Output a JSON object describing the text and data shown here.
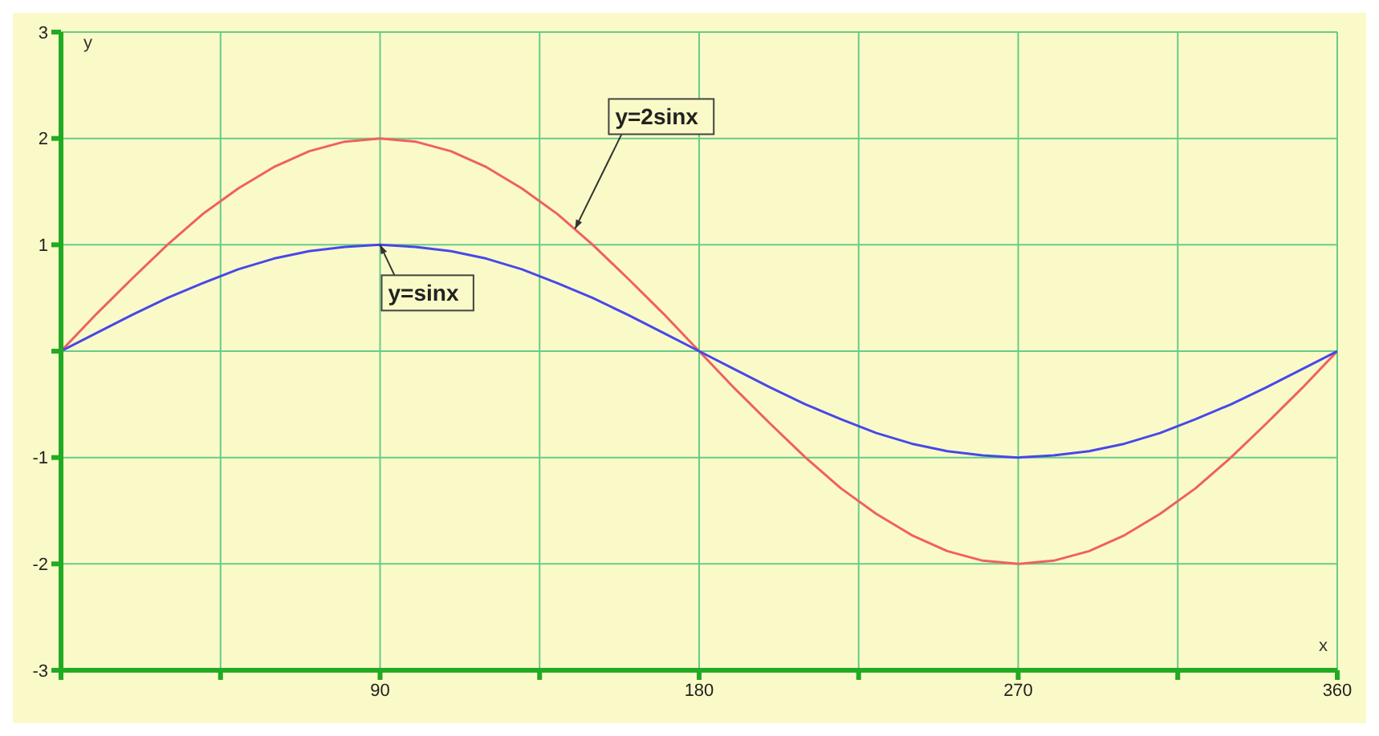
{
  "chart_data": {
    "type": "line",
    "xlabel": "x",
    "ylabel": "y",
    "x": [
      0,
      10,
      20,
      30,
      40,
      50,
      60,
      70,
      80,
      90,
      100,
      110,
      120,
      130,
      140,
      150,
      160,
      170,
      180,
      190,
      200,
      210,
      220,
      230,
      240,
      250,
      260,
      270,
      280,
      290,
      300,
      310,
      320,
      330,
      340,
      350,
      360
    ],
    "series": [
      {
        "color": "#f06060",
        "values": [
          0,
          0.35,
          0.68,
          1,
          1.29,
          1.53,
          1.73,
          1.88,
          1.97,
          2,
          1.97,
          1.88,
          1.73,
          1.53,
          1.29,
          1,
          0.68,
          0.35,
          0,
          -0.35,
          -0.68,
          -1,
          -1.29,
          -1.53,
          -1.73,
          -1.88,
          -1.97,
          -2,
          -1.97,
          -1.88,
          -1.73,
          -1.53,
          -1.29,
          -1,
          -0.68,
          -0.35,
          0
        ]
      },
      {
        "color": "#4848e8",
        "values": [
          0,
          0.17,
          0.34,
          0.5,
          0.64,
          0.77,
          0.87,
          0.94,
          0.98,
          1,
          0.98,
          0.94,
          0.87,
          0.77,
          0.64,
          0.5,
          0.34,
          0.17,
          0,
          -0.17,
          -0.34,
          -0.5,
          -0.64,
          -0.77,
          -0.87,
          -0.94,
          -0.98,
          -1,
          -0.98,
          -0.94,
          -0.87,
          -0.77,
          -0.64,
          -0.5,
          -0.34,
          -0.17,
          0
        ]
      }
    ],
    "xlim": [
      0,
      360
    ],
    "xticks": [
      {
        "value": 0,
        "label": null
      },
      {
        "value": 45,
        "label": null
      },
      90,
      {
        "value": 135,
        "label": null
      },
      180,
      {
        "value": 225,
        "label": null
      },
      270,
      {
        "value": 315,
        "label": null
      },
      360
    ],
    "ylim": [
      -3,
      3
    ],
    "yticks": [
      -3,
      -2,
      -1,
      {
        "value": 0,
        "label": null
      },
      1,
      2,
      3
    ],
    "grid": true,
    "marker": "none",
    "line_style": "solid",
    "legend": false,
    "annotations": [
      {
        "text": "y=2sinx",
        "x": 145,
        "y": 1.15
      },
      {
        "text": "y=sinx",
        "x": 90,
        "y": 1
      }
    ]
  }
}
